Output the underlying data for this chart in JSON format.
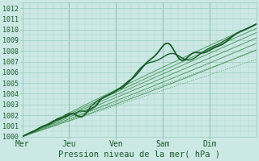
{
  "title": "Pression niveau de la mer( hPa )",
  "background_color": "#cce8e4",
  "grid_color_major": "#99ccbb",
  "grid_color_minor": "#aad8cc",
  "line_color_dark": "#1a5c2a",
  "line_color_med": "#2d7a40",
  "line_color_light": "#3d8f50",
  "ylim": [
    1000,
    1012.5
  ],
  "yticks": [
    1000,
    1001,
    1002,
    1003,
    1004,
    1005,
    1006,
    1007,
    1008,
    1009,
    1010,
    1011,
    1012
  ],
  "day_labels": [
    "Mer",
    "Jeu",
    "Ven",
    "Sam",
    "Dim"
  ],
  "day_positions": [
    0,
    24,
    48,
    72,
    96
  ],
  "xlim": [
    0,
    120
  ],
  "n_points": 241
}
